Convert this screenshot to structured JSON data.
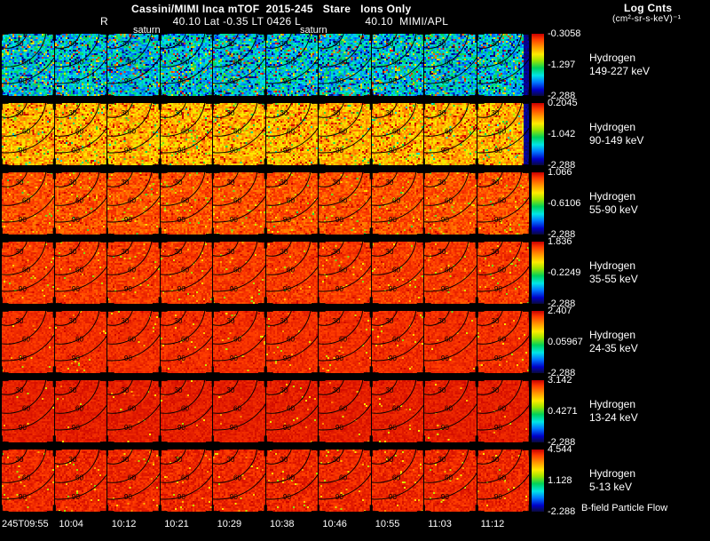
{
  "header": {
    "title": "Cassini/MIMI Inca mTOF  2015-245   Stare   Ions Only",
    "line2": "R                    40.10 Lat -0.35 LT 0426 L                    40.10  MIMI/APL",
    "saturn_labels": [
      "saturn",
      "saturn"
    ],
    "log_cnts": "Log Cnts",
    "log_cnts_units": "(cm²-sr-s-keV)⁻¹"
  },
  "rows": [
    {
      "species": "Hydrogen",
      "energy_range": "149-227 keV",
      "cb_max": "-0.3058",
      "cb_mid": "-1.297",
      "cb_min": "-2.288",
      "noise": {
        "mean": 0.33,
        "spread": 0.14,
        "hotspeck": 0.1,
        "coldspeck": 0.18
      },
      "right_edge_dark": true
    },
    {
      "species": "Hydrogen",
      "energy_range": "90-149 keV",
      "cb_max": "0.2045",
      "cb_mid": "-1.042",
      "cb_min": "-2.288",
      "noise": {
        "mean": 0.74,
        "spread": 0.1,
        "hotspeck": 0.08,
        "coldspeck": 0.05
      },
      "right_edge_dark": true
    },
    {
      "species": "Hydrogen",
      "energy_range": "55-90 keV",
      "cb_max": "1.066",
      "cb_mid": "-0.6106",
      "cb_min": "-2.288",
      "noise": {
        "mean": 0.86,
        "spread": 0.06,
        "hotspeck": 0.03,
        "coldspeck": 0.03
      },
      "right_edge_dark": false
    },
    {
      "species": "Hydrogen",
      "energy_range": "35-55 keV",
      "cb_max": "1.836",
      "cb_mid": "-0.2249",
      "cb_min": "-2.288",
      "noise": {
        "mean": 0.89,
        "spread": 0.05,
        "hotspeck": 0.02,
        "coldspeck": 0.02
      },
      "right_edge_dark": false
    },
    {
      "species": "Hydrogen",
      "energy_range": "24-35 keV",
      "cb_max": "2.407",
      "cb_mid": "0.05967",
      "cb_min": "-2.288",
      "noise": {
        "mean": 0.91,
        "spread": 0.04,
        "hotspeck": 0.02,
        "coldspeck": 0.015
      },
      "right_edge_dark": false
    },
    {
      "species": "Hydrogen",
      "energy_range": "13-24 keV",
      "cb_max": "3.142",
      "cb_mid": "0.4271",
      "cb_min": "-2.288",
      "noise": {
        "mean": 0.94,
        "spread": 0.035,
        "hotspeck": 0.01,
        "coldspeck": 0.01
      },
      "right_edge_dark": false
    },
    {
      "species": "Hydrogen",
      "energy_range": "5-13 keV",
      "cb_max": "4.544",
      "cb_mid": "1.128",
      "cb_min": "-2.288",
      "noise": {
        "mean": 0.92,
        "spread": 0.05,
        "hotspeck": 0.02,
        "coldspeck": 0.02
      },
      "right_edge_dark": false
    }
  ],
  "contours": {
    "labels": [
      "30",
      "60",
      "90"
    ]
  },
  "time_axis": [
    "245T09:55",
    "10:04",
    "10:12",
    "10:21",
    "10:29",
    "10:38",
    "10:46",
    "10:55",
    "11:03",
    "11:12"
  ],
  "footer_right": "B-field Particle Flow",
  "colors": {
    "background": "#000000",
    "text": "#ffffff",
    "contour": "#000000"
  },
  "chart_data": {
    "type": "heatmap",
    "title": "Cassini/MIMI Inca mTOF 2015-245 Stare Ions Only",
    "x_categories": [
      "245T09:55",
      "10:04",
      "10:12",
      "10:21",
      "10:29",
      "10:38",
      "10:46",
      "10:55",
      "11:03",
      "11:12"
    ],
    "y_rows": [
      {
        "label": "Hydrogen 149-227 keV",
        "colorbar_max": -0.3058,
        "colorbar_mid": -1.297,
        "colorbar_min": -2.288,
        "approx_mean_log_cnts": -1.3
      },
      {
        "label": "Hydrogen 90-149 keV",
        "colorbar_max": 0.2045,
        "colorbar_mid": -1.042,
        "colorbar_min": -2.288,
        "approx_mean_log_cnts": -0.2
      },
      {
        "label": "Hydrogen 55-90 keV",
        "colorbar_max": 1.066,
        "colorbar_mid": -0.6106,
        "colorbar_min": -2.288,
        "approx_mean_log_cnts": 0.7
      },
      {
        "label": "Hydrogen 35-55 keV",
        "colorbar_max": 1.836,
        "colorbar_mid": -0.2249,
        "colorbar_min": -2.288,
        "approx_mean_log_cnts": 1.4
      },
      {
        "label": "Hydrogen 24-35 keV",
        "colorbar_max": 2.407,
        "colorbar_mid": 0.05967,
        "colorbar_min": -2.288,
        "approx_mean_log_cnts": 2.0
      },
      {
        "label": "Hydrogen 13-24 keV",
        "colorbar_max": 3.142,
        "colorbar_mid": 0.4271,
        "colorbar_min": -2.288,
        "approx_mean_log_cnts": 2.8
      },
      {
        "label": "Hydrogen 5-13 keV",
        "colorbar_max": 4.544,
        "colorbar_mid": 1.128,
        "colorbar_min": -2.288,
        "approx_mean_log_cnts": 3.9
      }
    ],
    "colorbar_label": "Log Cnts (cm²-sr-s-keV)⁻¹",
    "contour_angle_deg": [
      30,
      60,
      90
    ],
    "grid": "10 time columns x 7 energy rows of sky-map panels",
    "legend_position": "right"
  }
}
